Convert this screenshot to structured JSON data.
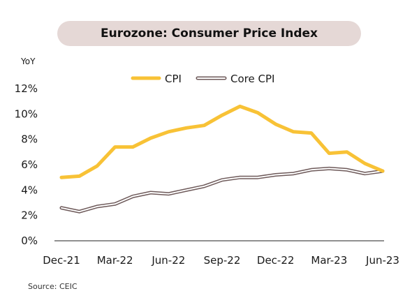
{
  "title": "Eurozone: Consumer Price Index",
  "source": "Source: CEIC",
  "colors": {
    "cpi": "#f8c236",
    "core": "#6e5a5a",
    "core_fill": "#ffffff",
    "title_bg": "#e5d8d6"
  },
  "chart_data": {
    "type": "line",
    "title": "Eurozone: Consumer Price Index",
    "ylabel": "YoY",
    "xlabel": "",
    "ylim": [
      0,
      12
    ],
    "y_ticks": [
      "0%",
      "2%",
      "4%",
      "6%",
      "8%",
      "10%",
      "12%"
    ],
    "x_tick_labels": [
      "Dec-21",
      "Mar-22",
      "Jun-22",
      "Sep-22",
      "Dec-22",
      "Mar-23",
      "Jun-23"
    ],
    "x": [
      "Dec-21",
      "Jan-22",
      "Feb-22",
      "Mar-22",
      "Apr-22",
      "May-22",
      "Jun-22",
      "Jul-22",
      "Aug-22",
      "Sep-22",
      "Oct-22",
      "Nov-22",
      "Dec-22",
      "Jan-23",
      "Feb-23",
      "Mar-23",
      "Apr-23",
      "May-23",
      "Jun-23"
    ],
    "series": [
      {
        "name": "CPI",
        "values": [
          5.0,
          5.1,
          5.9,
          7.4,
          7.4,
          8.1,
          8.6,
          8.9,
          9.1,
          9.9,
          10.6,
          10.1,
          9.2,
          8.6,
          8.5,
          6.9,
          7.0,
          6.1,
          5.5
        ]
      },
      {
        "name": "Core CPI",
        "values": [
          2.6,
          2.3,
          2.7,
          2.9,
          3.5,
          3.8,
          3.7,
          4.0,
          4.3,
          4.8,
          5.0,
          5.0,
          5.2,
          5.3,
          5.6,
          5.7,
          5.6,
          5.3,
          5.5
        ]
      }
    ],
    "grid": false,
    "legend_position": "top"
  }
}
